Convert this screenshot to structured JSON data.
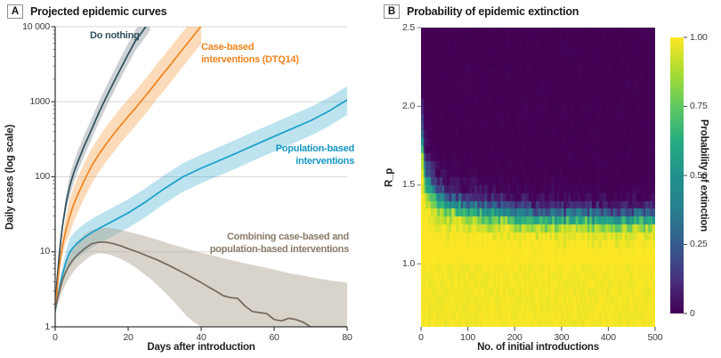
{
  "chart_data": [
    {
      "type": "line",
      "panel_label": "A",
      "title": "Projected epidemic curves",
      "xlabel": "Days after introduction",
      "ylabel": "Daily cases (log scale)",
      "x_range": [
        0,
        80
      ],
      "xticks": [
        0,
        20,
        40,
        60,
        80
      ],
      "y_scale": "log",
      "y_range": [
        1,
        10000
      ],
      "ytick_values": [
        10000,
        1000,
        100,
        10,
        1
      ],
      "ytick_labels": [
        "10 000",
        "1000",
        "100",
        "10",
        "1"
      ],
      "grid": "horizontal decade gridlines",
      "series": [
        {
          "name": "Do nothing",
          "color": "#30505c",
          "band_color": "rgba(96,112,120,0.32)",
          "x": [
            0,
            0.5,
            1,
            1.5,
            2,
            3,
            4,
            5,
            6,
            8,
            10,
            12,
            14,
            16,
            18,
            20,
            22,
            24,
            26
          ],
          "y": [
            1.7,
            4,
            8,
            14,
            22,
            45,
            75,
            110,
            150,
            260,
            430,
            720,
            1150,
            1800,
            2800,
            4300,
            6500,
            8800,
            12000
          ],
          "band_lo_factor": 0.74,
          "band_hi_factor": 1.4,
          "label": {
            "lines": [
              "Do nothing"
            ],
            "color": "#30505c",
            "pos": {
              "left": 101,
              "top": 33
            },
            "align": "left"
          }
        },
        {
          "name": "Case-based interventions (DTQ14)",
          "color": "#f0831f",
          "band_color": "rgba(242,150,50,0.34)",
          "x": [
            0,
            0.5,
            1,
            1.5,
            2,
            3,
            4,
            5,
            6,
            8,
            10,
            12,
            14,
            16,
            18,
            20,
            22,
            24,
            26,
            28,
            30,
            32,
            34,
            36,
            38,
            40
          ],
          "y": [
            1.6,
            3,
            5.5,
            8.5,
            12,
            20,
            30,
            42,
            55,
            90,
            140,
            200,
            275,
            370,
            490,
            640,
            820,
            1080,
            1420,
            1900,
            2500,
            3300,
            4400,
            5800,
            7700,
            10200
          ],
          "band_lo_factor": 0.58,
          "band_hi_factor": 1.7,
          "label": {
            "lines": [
              "Case-based",
              "interventions (DTQ14)"
            ],
            "color": "#f0831f",
            "pos": {
              "left": 226,
              "top": 46
            },
            "align": "left"
          }
        },
        {
          "name": "Population-based interventions",
          "color": "#1a9fca",
          "band_color": "rgba(38,163,202,0.30)",
          "x": [
            0,
            0.5,
            1,
            2,
            3,
            4,
            5,
            6,
            8,
            10,
            12,
            15,
            20,
            25,
            30,
            35,
            40,
            45,
            50,
            55,
            60,
            65,
            70,
            75,
            80
          ],
          "y": [
            1.6,
            2.2,
            3,
            5,
            7.5,
            10,
            11.5,
            13,
            15.5,
            18,
            20.5,
            24.5,
            33,
            47,
            70,
            100,
            130,
            165,
            210,
            270,
            345,
            440,
            560,
            750,
            1060
          ],
          "band_lo_factor": 0.63,
          "band_hi_factor": 1.52,
          "label": {
            "lines": [
              "Population-based",
              "interventions"
            ],
            "color": "#1697c2",
            "pos": {
              "right": 412,
              "top": 160
            },
            "align": "right"
          }
        },
        {
          "name": "Combining case-based and population-based interventions",
          "color": "#75685a",
          "band_color": "rgba(170,159,140,0.45)",
          "x": [
            0,
            0.5,
            1,
            2,
            3,
            4,
            5,
            6,
            8,
            10,
            12,
            14,
            16,
            18,
            20,
            22,
            24,
            26,
            28,
            30,
            32,
            34,
            36,
            38,
            40,
            42,
            44,
            46,
            48,
            50,
            52,
            54,
            56,
            58,
            60,
            62,
            64,
            66,
            68,
            70,
            72,
            76,
            80
          ],
          "y": [
            1.7,
            2.2,
            2.8,
            4.2,
            5.5,
            6.8,
            8,
            9,
            11,
            12.8,
            13.5,
            13.4,
            12.8,
            12,
            11,
            10.2,
            9.3,
            8.5,
            7.8,
            7,
            6.3,
            5.6,
            5,
            4.4,
            3.9,
            3.4,
            3,
            2.6,
            2.45,
            2.4,
            1.9,
            1.6,
            1.55,
            1.5,
            1.25,
            1.2,
            1.3,
            1.25,
            1.15,
            1,
            1,
            1,
            1
          ],
          "band_hi": [
            1.7,
            2.6,
            3.6,
            5.5,
            7.5,
            9.5,
            11.5,
            13.5,
            17,
            19.5,
            20.5,
            21,
            20.5,
            19.5,
            18.5,
            17.5,
            16.5,
            15.5,
            14.5,
            13.5,
            12.5,
            11.8,
            11,
            10.3,
            9.7,
            9.2,
            8.7,
            8.2,
            7.8,
            7.4,
            7,
            6.7,
            6.4,
            6.1,
            5.8,
            5.5,
            5.2,
            5,
            4.8,
            4.6,
            4.4,
            4.1,
            3.9
          ],
          "band_lo": [
            1.7,
            1.9,
            2.2,
            3,
            3.8,
            4.6,
            5.4,
            6.2,
            7.6,
            9,
            9.6,
            9.4,
            8.8,
            8,
            7.1,
            6.2,
            5.2,
            4.4,
            3.6,
            2.9,
            2.3,
            1.8,
            1.4,
            1.15,
            1,
            1,
            1,
            1,
            1,
            1,
            1,
            1,
            1,
            1,
            1,
            1,
            1,
            1,
            1,
            1,
            1,
            1,
            1
          ],
          "label": {
            "lines": [
              "Combining case-based and",
              "population-based interventions"
            ],
            "color": "#8a7a68",
            "pos": {
              "right": 418,
              "top": 259
            },
            "align": "right"
          }
        }
      ]
    },
    {
      "type": "heatmap",
      "panel_label": "B",
      "title": "Probability of epidemic extinction",
      "xlabel": "No. of initial introductions",
      "ylabel": "R_p",
      "x_range": [
        0,
        500
      ],
      "xticks": [
        0,
        100,
        200,
        300,
        400,
        500
      ],
      "y_range": [
        0.6,
        2.5
      ],
      "yticks": [
        2.5,
        2.0,
        1.5,
        1.0
      ],
      "ytick_labels": [
        "2.5",
        "2.0",
        "1.5",
        "1.0"
      ],
      "value_range": [
        0,
        1
      ],
      "colormap": "viridis",
      "viridis_stops": [
        [
          0,
          "#440154"
        ],
        [
          0.125,
          "#46327e"
        ],
        [
          0.25,
          "#365c8d"
        ],
        [
          0.375,
          "#277f8e"
        ],
        [
          0.5,
          "#21918c"
        ],
        [
          0.625,
          "#27ad81"
        ],
        [
          0.75,
          "#5ec962"
        ],
        [
          0.875,
          "#aadc32"
        ],
        [
          1,
          "#fde725"
        ]
      ],
      "colorbar": {
        "label": "Probability of extinction",
        "tick_labels": [
          "1.00",
          "0.75",
          "0.50",
          "0.25",
          "0"
        ],
        "tick_values": [
          1,
          0.75,
          0.5,
          0.25,
          0
        ]
      },
      "transition_midpoints": {
        "comment": "R_p at which extinction probability = 0.5, read from the color boundary",
        "n": [
          5,
          10,
          25,
          50,
          100,
          200,
          300,
          500
        ],
        "Rp": [
          1.75,
          1.6,
          1.47,
          1.4,
          1.35,
          1.31,
          1.3,
          1.28
        ]
      },
      "model": {
        "desc": "p_ext(Rp,n) = logistic((mid(n)-Rp)/s(n)); mid(n)=1.22+1.137*n^-0.474; s(n)=0.03+0.112*n^-0.5; p=1 for Rp<1; simulation noise per cell",
        "mid_base": 1.22,
        "mid_amp": 1.137,
        "mid_pow": -0.474,
        "s_base": 0.03,
        "s_amp": 0.112,
        "s_pow": -0.5,
        "col_jitter": 0.05,
        "cell_noise": 0.22,
        "n_min": 5,
        "n_max": 500,
        "n_step": 5,
        "r_min": 0.6,
        "r_max": 2.5,
        "r_step": 0.05
      }
    }
  ]
}
